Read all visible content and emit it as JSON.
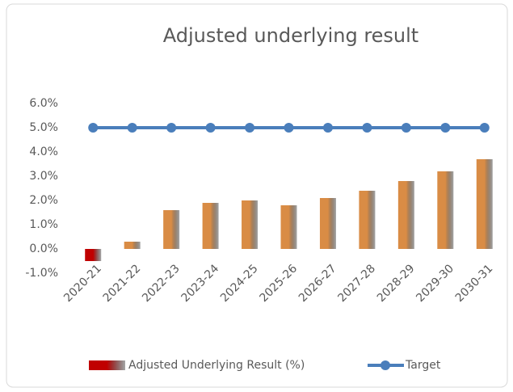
{
  "chart_data": {
    "type": "bar",
    "title": "Adjusted underlying result",
    "categories": [
      "2020-21",
      "2021-22",
      "2022-23",
      "2023-24",
      "2024-25",
      "2025-26",
      "2026-27",
      "2027-28",
      "2028-29",
      "2029-30",
      "2030-31"
    ],
    "series": [
      {
        "name": "Adjusted Underlying Result (%)",
        "type": "bar",
        "color": "#d98c45",
        "negative_color": "#c00000",
        "values": [
          -0.5,
          0.3,
          1.6,
          1.9,
          2.0,
          1.8,
          2.1,
          2.4,
          2.8,
          3.2,
          3.7
        ]
      },
      {
        "name": "Target",
        "type": "line",
        "color": "#4a7ebb",
        "values": [
          5.0,
          5.0,
          5.0,
          5.0,
          5.0,
          5.0,
          5.0,
          5.0,
          5.0,
          5.0,
          5.0
        ]
      }
    ],
    "ylim": [
      -1,
      6
    ],
    "yticks": [
      {
        "value": -1,
        "label": "-1.0%"
      },
      {
        "value": 0,
        "label": "0.0%"
      },
      {
        "value": 1,
        "label": "1.0%"
      },
      {
        "value": 2,
        "label": "2.0%"
      },
      {
        "value": 3,
        "label": "3.0%"
      },
      {
        "value": 4,
        "label": "4.0%"
      },
      {
        "value": 5,
        "label": "5.0%"
      },
      {
        "value": 6,
        "label": "6.0%"
      }
    ],
    "grid": false,
    "legend": "bottom"
  }
}
